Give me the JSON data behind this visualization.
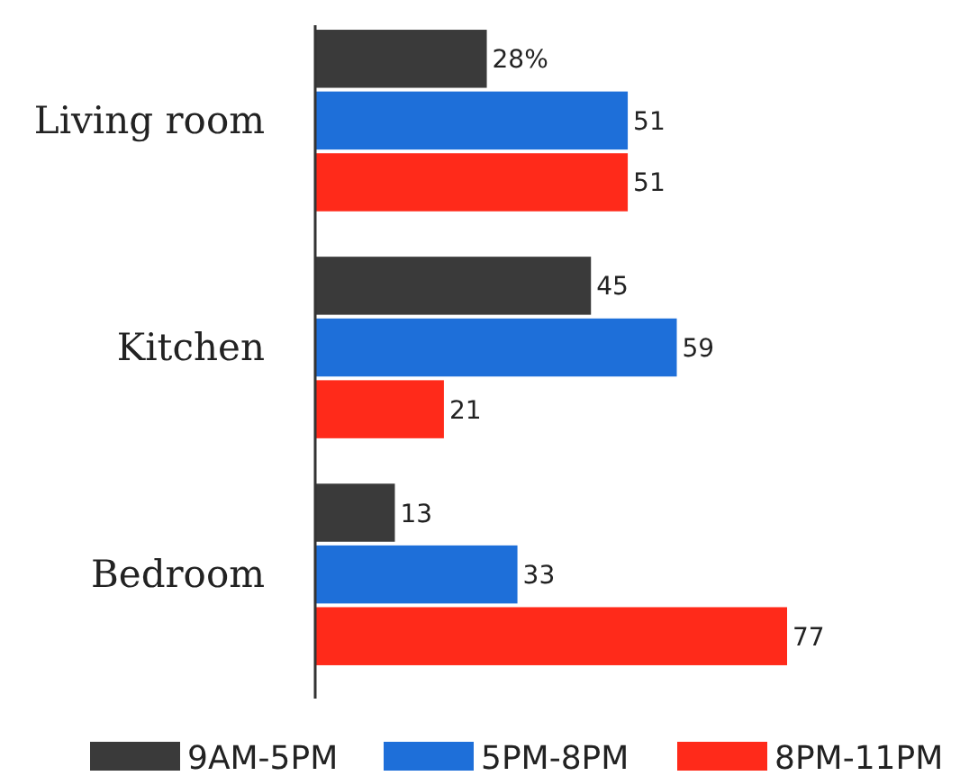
{
  "chart_data": {
    "type": "bar",
    "orientation": "horizontal",
    "categories": [
      "Living room",
      "Kitchen",
      "Bedroom"
    ],
    "series": [
      {
        "name": "9AM-5PM",
        "color": "#3a3a3a",
        "values": [
          28,
          45,
          13
        ],
        "value_labels": [
          "28%",
          "45",
          "13"
        ]
      },
      {
        "name": "5PM-8PM",
        "color": "#1e6fd9",
        "values": [
          51,
          59,
          33
        ],
        "value_labels": [
          "51",
          "59",
          "33"
        ]
      },
      {
        "name": "8PM-11PM",
        "color": "#ff2a1a",
        "values": [
          51,
          21,
          77
        ],
        "value_labels": [
          "51",
          "21",
          "77"
        ]
      }
    ],
    "legend": "bottom"
  }
}
